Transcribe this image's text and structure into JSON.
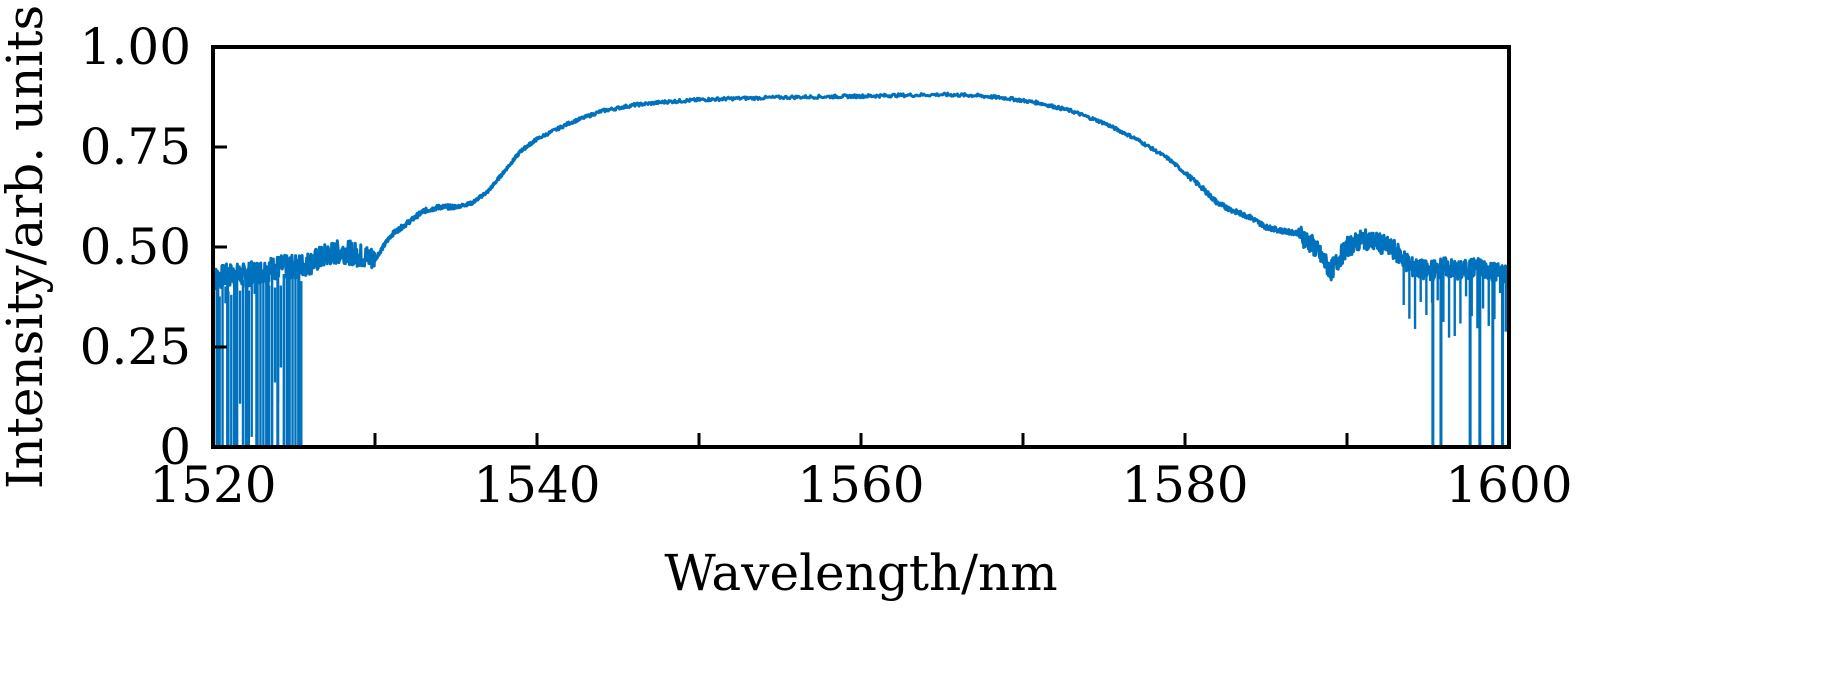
{
  "chart_data": {
    "type": "line",
    "title": "",
    "xlabel": "Wavelength/nm",
    "ylabel": "Intensity/arb. units",
    "xlim": [
      1520,
      1600
    ],
    "ylim": [
      0,
      1.0
    ],
    "x_ticks": [
      1520,
      1530,
      1540,
      1550,
      1560,
      1570,
      1580,
      1590,
      1600
    ],
    "x_tick_labels": [
      "1520",
      "",
      "1540",
      "",
      "1560",
      "",
      "1580",
      "",
      "1600"
    ],
    "y_ticks": [
      0,
      0.25,
      0.5,
      0.75,
      1.0
    ],
    "y_tick_labels": [
      "0",
      "0.25",
      "0.50",
      "0.75",
      "1.00"
    ],
    "grid": false,
    "legend": "none",
    "line_color": "#0071bc",
    "series": [
      {
        "x": [
          1520,
          1521,
          1522,
          1523,
          1524,
          1525,
          1526,
          1527,
          1528,
          1529,
          1530,
          1531,
          1532,
          1533,
          1534,
          1535,
          1536,
          1537,
          1538,
          1539,
          1540,
          1542,
          1544,
          1546,
          1548,
          1550,
          1552,
          1555,
          1558,
          1560,
          1562,
          1565,
          1567,
          1569,
          1571,
          1573,
          1575,
          1577,
          1579,
          1581,
          1582,
          1583,
          1584,
          1585,
          1586,
          1587,
          1588,
          1589,
          1590,
          1591,
          1592,
          1593,
          1594,
          1595,
          1596,
          1597,
          1598,
          1599,
          1600
        ],
        "y": [
          0.42,
          0.43,
          0.43,
          0.44,
          0.45,
          0.45,
          0.46,
          0.48,
          0.49,
          0.48,
          0.47,
          0.53,
          0.56,
          0.59,
          0.6,
          0.6,
          0.61,
          0.64,
          0.69,
          0.74,
          0.77,
          0.81,
          0.84,
          0.855,
          0.863,
          0.868,
          0.871,
          0.874,
          0.876,
          0.877,
          0.879,
          0.881,
          0.879,
          0.872,
          0.86,
          0.84,
          0.81,
          0.77,
          0.72,
          0.65,
          0.61,
          0.59,
          0.575,
          0.55,
          0.54,
          0.535,
          0.5,
          0.44,
          0.5,
          0.52,
          0.51,
          0.49,
          0.45,
          0.44,
          0.45,
          0.44,
          0.45,
          0.44,
          0.43
        ]
      }
    ],
    "noise_dropouts": [
      {
        "x": 1520.3,
        "y": 0.0
      },
      {
        "x": 1520.9,
        "y": 0.0
      },
      {
        "x": 1521.4,
        "y": 0.0
      },
      {
        "x": 1522.1,
        "y": 0.0
      },
      {
        "x": 1522.7,
        "y": 0.0
      },
      {
        "x": 1523.4,
        "y": 0.0
      },
      {
        "x": 1524.0,
        "y": 0.0
      },
      {
        "x": 1524.6,
        "y": 0.0
      },
      {
        "x": 1525.3,
        "y": 0.0
      },
      {
        "x": 1595.3,
        "y": 0.0
      },
      {
        "x": 1595.8,
        "y": 0.0
      },
      {
        "x": 1597.6,
        "y": 0.0
      },
      {
        "x": 1598.2,
        "y": 0.0
      },
      {
        "x": 1599.0,
        "y": 0.0
      },
      {
        "x": 1599.6,
        "y": 0.0
      }
    ]
  }
}
